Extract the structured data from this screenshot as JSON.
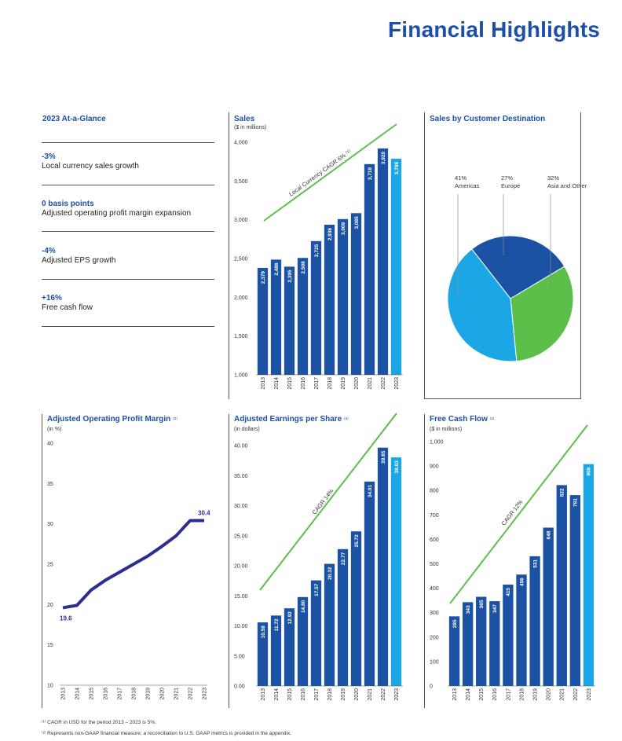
{
  "page": {
    "title": "Financial Highlights",
    "footnotes": [
      "⁽¹⁾ CAGR in USD for the period 2013 – 2023 is 5%.",
      "⁽²⁾ Represents non-GAAP financial measure; a reconciliation to U.S. GAAP metrics is provided in the appendix."
    ]
  },
  "glance": {
    "title": "2023 At-a-Glance",
    "items": [
      {
        "value": "-3%",
        "label": "Local currency sales growth"
      },
      {
        "value": "0 basis points",
        "label": "Adjusted operating profit margin expansion"
      },
      {
        "value": "-4%",
        "label": "Adjusted EPS growth"
      },
      {
        "value": "+16%",
        "label": "Free cash flow"
      }
    ]
  },
  "colors": {
    "bar": "#1b52a4",
    "bar_highlight": "#1ba7e6",
    "trend": "#5bbf4a",
    "line": "#2b2f8f",
    "pie_americas": "#1ba7e6",
    "pie_europe": "#1b52a4",
    "pie_asia": "#5bbf4a"
  },
  "chart_data": [
    {
      "id": "sales",
      "type": "bar",
      "title": "Sales",
      "subtitle": "($ in millions)",
      "categories": [
        "2013",
        "2014",
        "2015",
        "2016",
        "2017",
        "2018",
        "2019",
        "2020",
        "2021",
        "2022",
        "2023"
      ],
      "values": [
        2379,
        2486,
        2395,
        2508,
        2725,
        2936,
        3009,
        3085,
        3718,
        3920,
        3788
      ],
      "labels": [
        "2,379",
        "2,486",
        "2,395",
        "2,508",
        "2,725",
        "2,936",
        "3,009",
        "3,085",
        "3,718",
        "3,920",
        "3,788"
      ],
      "yticks": [
        "1,000",
        "1,500",
        "2,000",
        "2,500",
        "3,000",
        "3,500",
        "4,000"
      ],
      "ylim": [
        1000,
        4000
      ],
      "trend_label": "Local Currency CAGR 6% ⁽¹⁾"
    },
    {
      "id": "destination",
      "type": "pie",
      "title": "Sales by Customer Destination",
      "slices": [
        {
          "label": "Americas",
          "pct_label": "41%",
          "value": 41
        },
        {
          "label": "Europe",
          "pct_label": "27%",
          "value": 27
        },
        {
          "label": "Asia and Other",
          "pct_label": "32%",
          "value": 32
        }
      ]
    },
    {
      "id": "margin",
      "type": "line",
      "title": "Adjusted Operating Profit Margin",
      "title_note": "⁽²⁾",
      "subtitle": "(in %)",
      "categories": [
        "2013",
        "2014",
        "2015",
        "2016",
        "2017",
        "2018",
        "2019",
        "2020",
        "2021",
        "2022",
        "2023"
      ],
      "values": [
        19.6,
        19.9,
        21.8,
        23.0,
        24.0,
        25.0,
        26.0,
        27.2,
        28.5,
        30.4,
        30.4
      ],
      "first_label": "19.6",
      "last_label": "30.4",
      "yticks": [
        "10",
        "15",
        "20",
        "25",
        "30",
        "35",
        "40"
      ],
      "ylim": [
        10,
        40
      ]
    },
    {
      "id": "eps",
      "type": "bar",
      "title": "Adjusted Earnings per Share",
      "title_note": "⁽²⁾",
      "subtitle": "(in dollars)",
      "categories": [
        "2013",
        "2014",
        "2015",
        "2016",
        "2017",
        "2018",
        "2019",
        "2020",
        "2021",
        "2022",
        "2023"
      ],
      "values": [
        10.58,
        11.72,
        12.92,
        14.8,
        17.57,
        20.32,
        22.77,
        25.72,
        34.01,
        39.65,
        38.03
      ],
      "labels": [
        "10.58",
        "11.72",
        "12.92",
        "14.80",
        "17.57",
        "20.32",
        "22.77",
        "25.72",
        "34.01",
        "39.65",
        "38.03"
      ],
      "yticks": [
        "0.00",
        "5.00",
        "10.00",
        "15.00",
        "20.00",
        "25.00",
        "30.00",
        "35.00",
        "40.00"
      ],
      "ylim": [
        0,
        40
      ],
      "trend_label": "CAGR 14%"
    },
    {
      "id": "fcf",
      "type": "bar",
      "title": "Free Cash Flow",
      "title_note": "⁽²⁾",
      "subtitle": "($ in millions)",
      "categories": [
        "2013",
        "2014",
        "2015",
        "2016",
        "2017",
        "2018",
        "2019",
        "2020",
        "2021",
        "2022",
        "2023"
      ],
      "values": [
        285,
        343,
        365,
        347,
        415,
        456,
        531,
        648,
        822,
        781,
        908
      ],
      "labels": [
        "285",
        "343",
        "365",
        "347",
        "415",
        "456",
        "531",
        "648",
        "822",
        "781",
        "908"
      ],
      "yticks": [
        "0",
        "100",
        "200",
        "300",
        "400",
        "500",
        "600",
        "700",
        "800",
        "900",
        "1,000"
      ],
      "ylim": [
        0,
        1000
      ],
      "trend_label": "CAGR 12%"
    }
  ]
}
